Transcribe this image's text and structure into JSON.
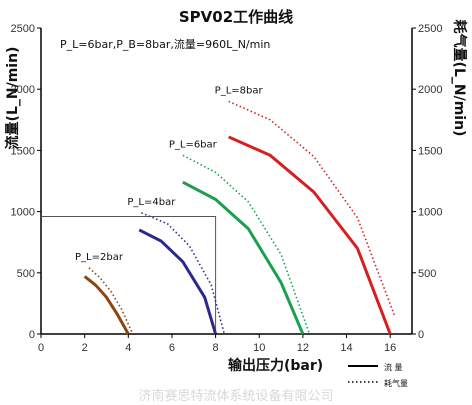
{
  "chart_data": {
    "type": "line",
    "title": "SPV02工作曲线",
    "subtitle": "P_L=6bar,P_B=8bar,流量=960L_N/min",
    "xlabel": "输出压力(bar)",
    "ylabel_left": "流量(L_N/min)",
    "ylabel_right": "耗气量(L_N/min)",
    "xlim": [
      0,
      17
    ],
    "ylim": [
      0,
      2500
    ],
    "x_ticks": [
      "0",
      "2",
      "4",
      "6",
      "8",
      "10",
      "12",
      "14",
      "16"
    ],
    "y_ticks": [
      "0",
      "500",
      "1000",
      "1500",
      "2000",
      "2500"
    ],
    "legend": {
      "flow": "流 量",
      "consumption": "耗气量"
    },
    "colors": {
      "2bar": "#8b4513",
      "4bar": "#2a2a8c",
      "6bar": "#1aa050",
      "8bar": "#d42020"
    },
    "series": [
      {
        "name": "P_L=2bar",
        "key": "2bar",
        "flow": {
          "x": [
            2.0,
            2.5,
            3.0,
            3.5,
            4.0
          ],
          "y": [
            470,
            400,
            300,
            160,
            0
          ]
        },
        "consumption": {
          "x": [
            2.2,
            2.7,
            3.2,
            3.7,
            4.2
          ],
          "y": [
            540,
            460,
            350,
            200,
            0
          ]
        }
      },
      {
        "name": "P_L=4bar",
        "key": "4bar",
        "flow": {
          "x": [
            4.5,
            5.5,
            6.5,
            7.5,
            8.0
          ],
          "y": [
            850,
            760,
            590,
            300,
            0
          ]
        },
        "consumption": {
          "x": [
            4.6,
            5.8,
            6.8,
            7.8,
            8.4
          ],
          "y": [
            990,
            900,
            720,
            400,
            0
          ]
        }
      },
      {
        "name": "P_L=6bar",
        "key": "6bar",
        "flow": {
          "x": [
            6.5,
            8.0,
            9.5,
            11.0,
            12.0
          ],
          "y": [
            1240,
            1100,
            860,
            420,
            0
          ]
        },
        "consumption": {
          "x": [
            6.5,
            8.0,
            9.5,
            11.0,
            12.3
          ],
          "y": [
            1460,
            1320,
            1080,
            650,
            0
          ]
        }
      },
      {
        "name": "P_L=8bar",
        "key": "8bar",
        "flow": {
          "x": [
            8.6,
            10.5,
            12.5,
            14.5,
            16.0
          ],
          "y": [
            1610,
            1460,
            1160,
            700,
            0
          ]
        },
        "consumption": {
          "x": [
            8.6,
            10.5,
            12.5,
            14.5,
            16.2
          ],
          "y": [
            1900,
            1750,
            1450,
            950,
            150
          ]
        }
      }
    ],
    "reference": {
      "x": 8,
      "y": 960
    },
    "watermark": "济南赛思特流体系统设备有限公司"
  }
}
